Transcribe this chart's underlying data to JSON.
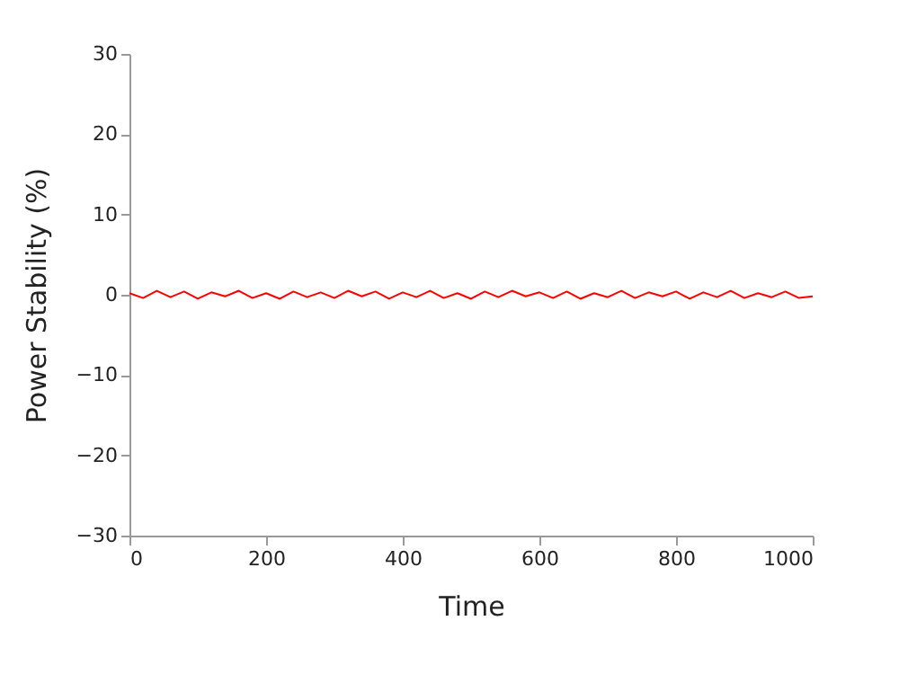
{
  "chart_data": {
    "type": "line",
    "xlabel": "Time",
    "ylabel": "Power Stability (%)",
    "x": [
      0,
      20,
      40,
      60,
      80,
      100,
      120,
      140,
      160,
      180,
      200,
      220,
      240,
      260,
      280,
      300,
      320,
      340,
      360,
      380,
      400,
      420,
      440,
      460,
      480,
      500,
      520,
      540,
      560,
      580,
      600,
      620,
      640,
      660,
      680,
      700,
      720,
      740,
      760,
      780,
      800,
      820,
      840,
      860,
      880,
      900,
      920,
      940,
      960,
      980,
      1000
    ],
    "series": [
      {
        "color": "#ff0000",
        "values": [
          0.2,
          -0.4,
          0.5,
          -0.3,
          0.4,
          -0.5,
          0.3,
          -0.2,
          0.5,
          -0.4,
          0.2,
          -0.5,
          0.4,
          -0.3,
          0.3,
          -0.4,
          0.5,
          -0.2,
          0.4,
          -0.5,
          0.3,
          -0.3,
          0.5,
          -0.4,
          0.2,
          -0.5,
          0.4,
          -0.3,
          0.5,
          -0.2,
          0.3,
          -0.4,
          0.4,
          -0.5,
          0.2,
          -0.3,
          0.5,
          -0.4,
          0.3,
          -0.2,
          0.4,
          -0.5,
          0.3,
          -0.3,
          0.5,
          -0.4,
          0.2,
          -0.3,
          0.4,
          -0.4,
          -0.2
        ]
      }
    ],
    "xlim": [
      0,
      1000
    ],
    "xticks": [
      0,
      200,
      400,
      600,
      800,
      1000
    ],
    "ylim": [
      -30,
      30
    ],
    "yticks": [
      -30,
      -20,
      -10,
      0,
      10,
      20,
      30
    ],
    "grid": false,
    "marker": "none",
    "line_style": "solid"
  }
}
